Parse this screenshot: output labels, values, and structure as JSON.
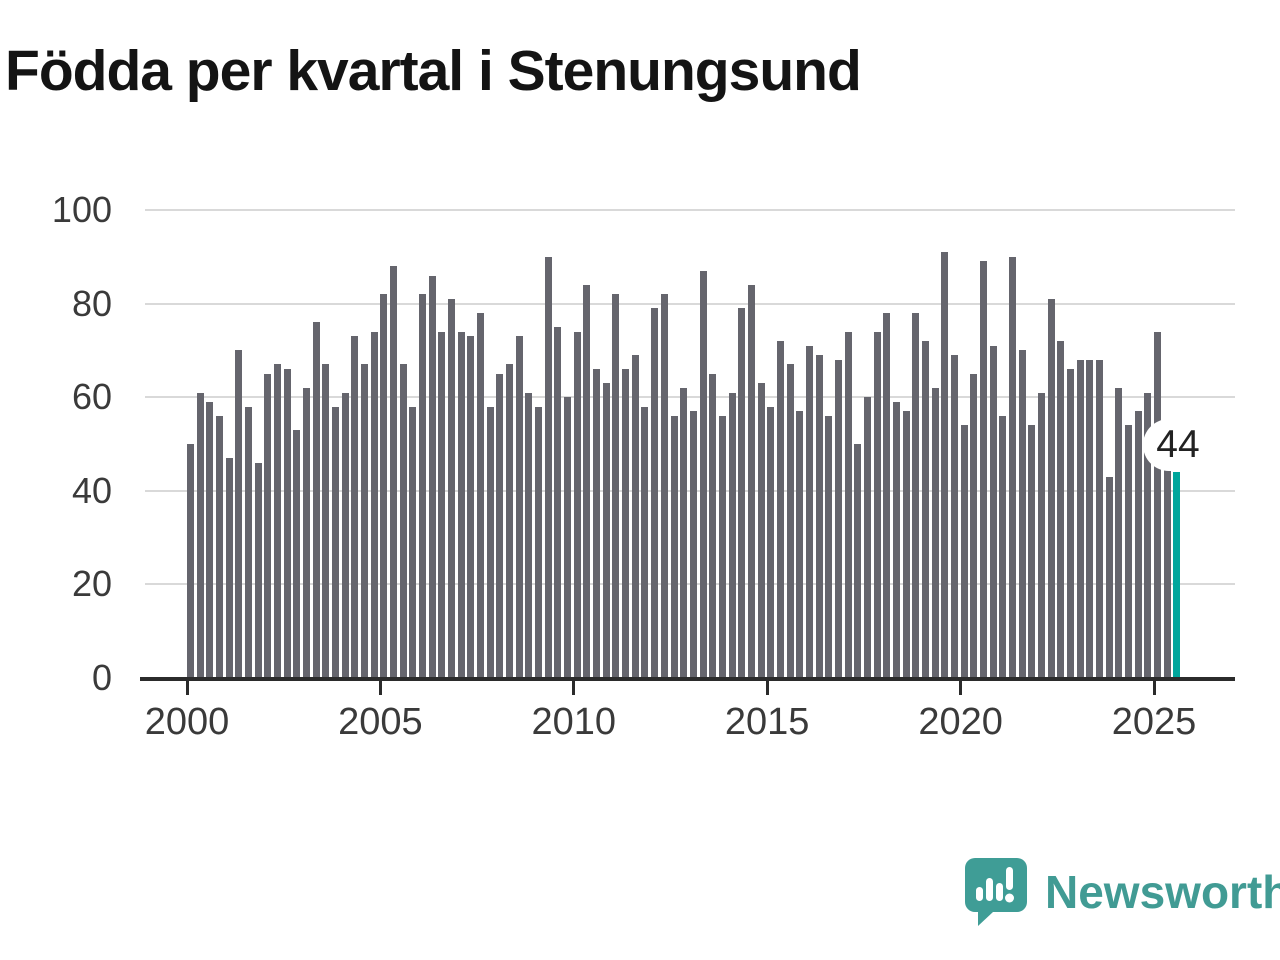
{
  "title": "Födda per kvartal i Stenungsund",
  "logo": {
    "text": "Newsworthy"
  },
  "colors": {
    "bar": "#65656d",
    "highlight": "#00a69c",
    "grid": "#d9d9d9",
    "axis": "#2b2b2b",
    "tick_label": "#3a3a3a",
    "title": "#141414",
    "logo": "#419b94"
  },
  "chart_data": {
    "type": "bar",
    "title": "Födda per kvartal i Stenungsund",
    "x_start": "2000 Q1",
    "x_end": "2025 Q3",
    "frequency": "quarterly",
    "values": [
      50,
      61,
      59,
      56,
      47,
      70,
      58,
      46,
      65,
      67,
      66,
      53,
      62,
      76,
      67,
      58,
      61,
      73,
      67,
      74,
      82,
      88,
      67,
      58,
      82,
      86,
      74,
      81,
      74,
      73,
      78,
      58,
      65,
      67,
      73,
      61,
      58,
      90,
      75,
      60,
      74,
      84,
      66,
      63,
      82,
      66,
      69,
      58,
      79,
      82,
      56,
      62,
      57,
      87,
      65,
      56,
      61,
      79,
      84,
      63,
      58,
      72,
      67,
      57,
      71,
      69,
      56,
      68,
      74,
      50,
      60,
      74,
      78,
      59,
      57,
      78,
      72,
      62,
      91,
      69,
      54,
      65,
      89,
      71,
      56,
      90,
      70,
      54,
      61,
      81,
      72,
      66,
      68,
      68,
      68,
      43,
      62,
      54,
      57,
      61,
      74,
      46,
      44
    ],
    "highlight_last_bar": true,
    "last_value_label": "44",
    "ylim": [
      0,
      100
    ],
    "yticks": [
      0,
      20,
      40,
      60,
      80,
      100
    ],
    "xticks": [
      {
        "label": "2000",
        "quarter_index": 0
      },
      {
        "label": "2005",
        "quarter_index": 20
      },
      {
        "label": "2010",
        "quarter_index": 40
      },
      {
        "label": "2015",
        "quarter_index": 60
      },
      {
        "label": "2020",
        "quarter_index": 80
      },
      {
        "label": "2025",
        "quarter_index": 100
      }
    ],
    "grid": "horizontal",
    "legend": "none"
  }
}
